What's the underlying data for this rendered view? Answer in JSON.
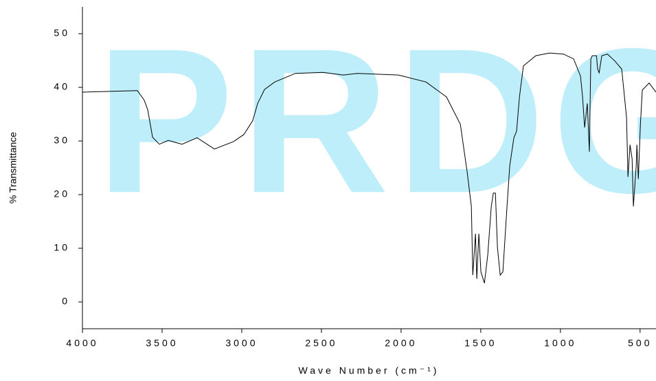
{
  "chart_data": {
    "type": "line",
    "watermark": "PRDG",
    "xlabel": "Wave Number (cm⁻¹)",
    "ylabel": "% Transmittance",
    "xlim": [
      4000,
      400
    ],
    "ylim": [
      -5,
      55
    ],
    "xticks": [
      4000,
      3500,
      3000,
      2500,
      2000,
      1500,
      1000,
      500
    ],
    "yticks": [
      0,
      10,
      20,
      30,
      40,
      50
    ],
    "grid": false,
    "x": [
      4000,
      3655,
      3612,
      3590,
      3560,
      3517,
      3461,
      3375,
      3280,
      3172,
      3051,
      2987,
      2931,
      2900,
      2857,
      2793,
      2663,
      2491,
      2361,
      2275,
      2189,
      2016,
      1844,
      1715,
      1628,
      1585,
      1559,
      1550,
      1533,
      1525,
      1512,
      1499,
      1477,
      1456,
      1434,
      1421,
      1408,
      1395,
      1378,
      1361,
      1335,
      1318,
      1292,
      1275,
      1257,
      1232,
      1154,
      1068,
      981,
      917,
      874,
      861,
      848,
      831,
      818,
      809,
      800,
      774,
      766,
      757,
      740,
      705,
      658,
      615,
      585,
      576,
      563,
      550,
      542,
      524,
      520,
      511,
      498,
      486,
      443,
      400
    ],
    "series": [
      {
        "name": "spectrum",
        "color": "#000000",
        "values": [
          39.1,
          39.4,
          37.6,
          35.8,
          30.7,
          29.4,
          30.1,
          29.4,
          30.6,
          28.5,
          29.9,
          31.2,
          33.8,
          37.0,
          39.6,
          41.0,
          42.6,
          42.8,
          42.3,
          42.6,
          42.5,
          42.3,
          41.0,
          38.2,
          33.1,
          24.2,
          17.8,
          5.0,
          12.7,
          4.3,
          12.7,
          5.6,
          3.5,
          8.8,
          17.8,
          20.3,
          20.3,
          10.1,
          5.0,
          5.6,
          17.8,
          25.4,
          30.6,
          31.8,
          38.2,
          44.0,
          45.9,
          46.4,
          46.2,
          45.3,
          42.1,
          38.2,
          32.5,
          37.0,
          28.0,
          45.3,
          45.9,
          45.9,
          43.4,
          42.7,
          45.9,
          46.2,
          44.9,
          43.4,
          34.4,
          23.3,
          29.3,
          26.7,
          17.8,
          25.4,
          29.3,
          22.9,
          33.1,
          39.5,
          40.8,
          39.1
        ]
      }
    ]
  }
}
